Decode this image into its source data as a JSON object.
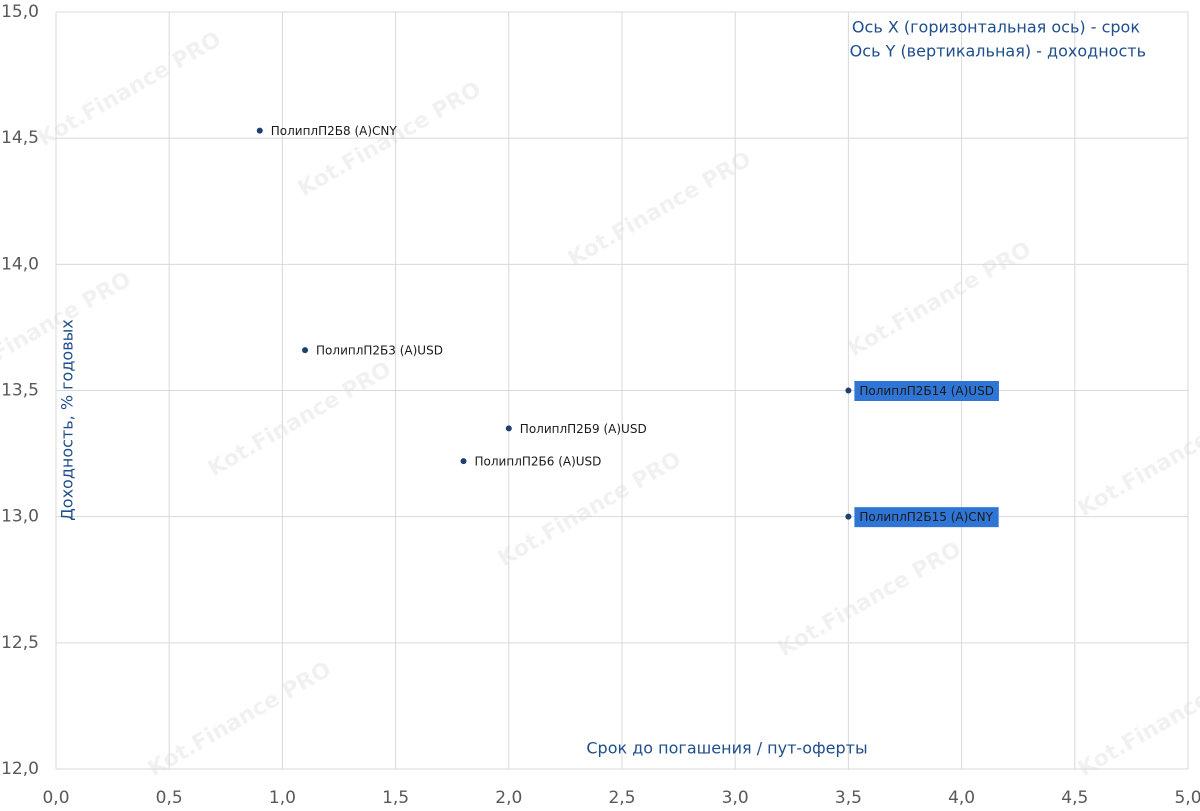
{
  "chart_data": {
    "type": "scatter",
    "x_label": "Срок до погашения / пут-оферты",
    "y_label": "Доходность, % годовых",
    "annotations": [
      "Ось X (горизонтальная ось) - срок",
      "Ось Y (вертикальная) - доходность"
    ],
    "watermark": "Kot.Finance PRO",
    "xlim": [
      0,
      5
    ],
    "ylim": [
      12,
      15
    ],
    "xticks": [
      {
        "value": 0,
        "label": "0,0"
      },
      {
        "value": 0.5,
        "label": "0,5"
      },
      {
        "value": 1,
        "label": "1,0"
      },
      {
        "value": 1.5,
        "label": "1,5"
      },
      {
        "value": 2,
        "label": "2,0"
      },
      {
        "value": 2.5,
        "label": "2,5"
      },
      {
        "value": 3,
        "label": "3,0"
      },
      {
        "value": 3.5,
        "label": "3,5"
      },
      {
        "value": 4,
        "label": "4,0"
      },
      {
        "value": 4.5,
        "label": "4,5"
      },
      {
        "value": 5,
        "label": "5,0"
      }
    ],
    "yticks": [
      {
        "value": 12,
        "label": "12,0"
      },
      {
        "value": 12.5,
        "label": "12,5"
      },
      {
        "value": 13,
        "label": "13,0"
      },
      {
        "value": 13.5,
        "label": "13,5"
      },
      {
        "value": 14,
        "label": "14,0"
      },
      {
        "value": 14.5,
        "label": "14,5"
      },
      {
        "value": 15,
        "label": "15,0"
      }
    ],
    "grid": true,
    "series": [
      {
        "color": "#1f3f73",
        "labels": [
          "ПолиплП2Б8 (A)CNY",
          "ПолиплП2Б3 (A)USD",
          "ПолиплП2Б9 (A)USD",
          "ПолиплП2Б6 (A)USD",
          "ПолиплП2Б14 (A)USD",
          "ПолиплП2Б15 (A)CNY"
        ],
        "x": [
          0.9,
          1.1,
          2.0,
          1.8,
          3.5,
          3.5
        ],
        "values": [
          14.53,
          13.66,
          13.35,
          13.22,
          13.5,
          13.0
        ],
        "highlighted": [
          false,
          false,
          false,
          false,
          true,
          true
        ],
        "highlight_color": "#2e75d6"
      }
    ]
  }
}
